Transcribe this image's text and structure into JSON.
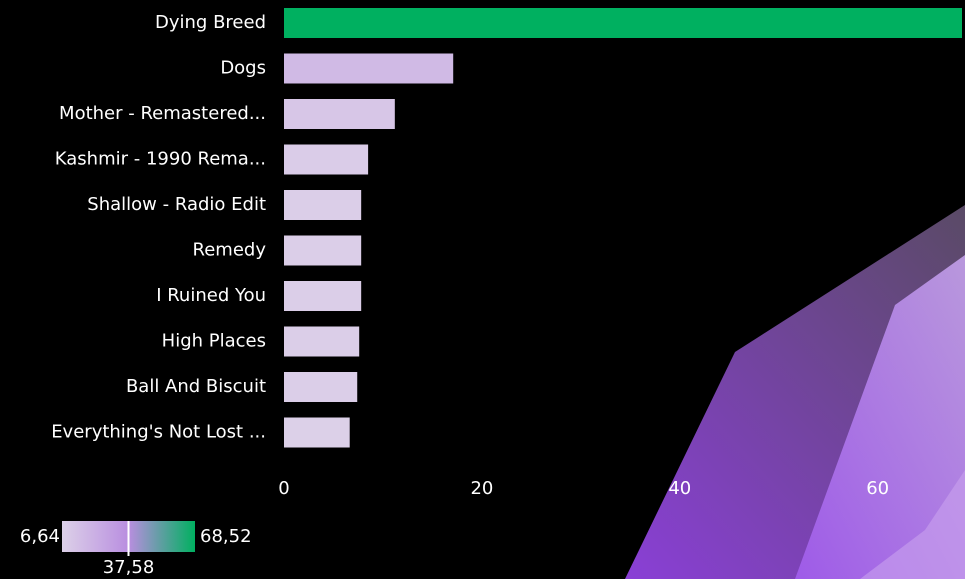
{
  "chart_data": {
    "type": "bar",
    "orientation": "horizontal",
    "categories": [
      "Dying Breed",
      "Dogs",
      "Mother - Remastered...",
      "Kashmir - 1990 Rema...",
      "Shallow - Radio Edit",
      "Remedy",
      "I Ruined You",
      "High Places",
      "Ball And Biscuit",
      "Everything's Not Lost ..."
    ],
    "values": [
      68.52,
      17.1,
      11.2,
      8.5,
      7.8,
      7.8,
      7.8,
      7.6,
      7.4,
      6.64
    ],
    "xlim": [
      0,
      68.52
    ],
    "xticks": [
      0,
      20,
      40,
      60
    ],
    "grid": false,
    "color_scale": {
      "min": {
        "value": 6.64,
        "label": "6,64"
      },
      "mid": {
        "value": 37.58,
        "label": "37,58"
      },
      "max": {
        "value": 68.52,
        "label": "68,52"
      },
      "colors": [
        "#dcd0e8",
        "#b98ee0",
        "#00b060"
      ]
    }
  }
}
